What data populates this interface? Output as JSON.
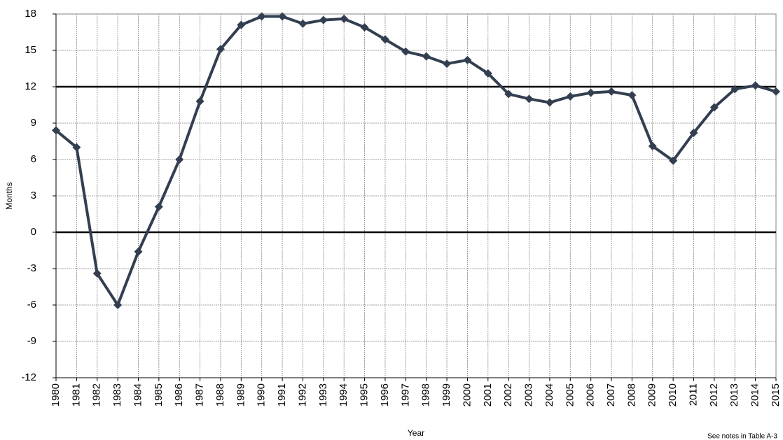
{
  "chart_data": {
    "type": "line",
    "x": [
      1980,
      1981,
      1982,
      1983,
      1984,
      1985,
      1986,
      1987,
      1988,
      1989,
      1990,
      1991,
      1992,
      1993,
      1994,
      1995,
      1996,
      1997,
      1998,
      1999,
      2000,
      2001,
      2002,
      2003,
      2004,
      2005,
      2006,
      2007,
      2008,
      2009,
      2010,
      2011,
      2012,
      2013,
      2014,
      2015
    ],
    "values": [
      8.4,
      7.0,
      -3.4,
      -6.0,
      -1.6,
      2.1,
      6.0,
      10.8,
      15.1,
      17.1,
      17.8,
      17.8,
      17.2,
      17.5,
      17.6,
      16.9,
      15.9,
      14.9,
      14.5,
      13.9,
      14.2,
      13.1,
      11.4,
      11.0,
      10.7,
      11.2,
      11.5,
      11.6,
      11.3,
      7.1,
      5.9,
      8.2,
      10.3,
      11.8,
      12.1,
      11.6
    ],
    "color": "#333f50",
    "xlim": [
      1980,
      2015
    ],
    "ylim": [
      -12,
      18
    ],
    "yticks": [
      -12,
      -9,
      -6,
      -3,
      0,
      3,
      6,
      9,
      12,
      15,
      18
    ],
    "reference_lines": [
      0,
      12
    ],
    "grid": true,
    "ylabel": "Months",
    "xlabel": "Year",
    "note": "See notes  in Table A-3"
  }
}
